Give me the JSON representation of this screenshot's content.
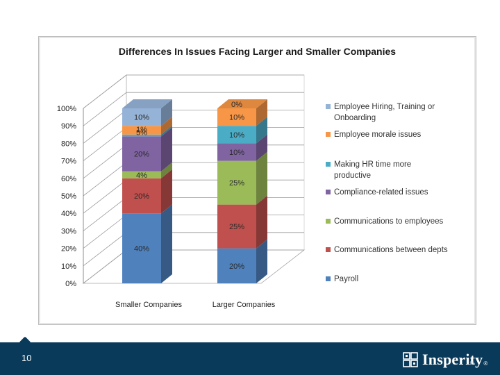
{
  "slide": {
    "number": "10",
    "tiny_page_number": "10"
  },
  "brand": {
    "name": "Insperity",
    "trademark": "®"
  },
  "colors": {
    "footer": "#0a3a5a",
    "payroll": "#4f81bd",
    "comm_depts": "#c0504d",
    "comm_employees": "#9bbb59",
    "compliance": "#8064a2",
    "hr_time": "#4bacc6",
    "morale": "#f79646",
    "hiring": "#95b3d7"
  },
  "chart_data": {
    "type": "bar",
    "stacked": true,
    "title": "Differences In Issues Facing Larger and Smaller Companies",
    "categories": [
      "Smaller Companies",
      "Larger Companies"
    ],
    "ylim": [
      0,
      100
    ],
    "yticks": [
      "0%",
      "10%",
      "20%",
      "30%",
      "40%",
      "50%",
      "60%",
      "70%",
      "80%",
      "90%",
      "100%"
    ],
    "series": [
      {
        "name": "Payroll",
        "key": "payroll",
        "values": [
          40,
          20
        ],
        "labels": [
          "40%",
          "20%"
        ]
      },
      {
        "name": "Communications between depts",
        "key": "comm_depts",
        "values": [
          20,
          25
        ],
        "labels": [
          "20%",
          "25%"
        ]
      },
      {
        "name": "Communications to employees",
        "key": "comm_employees",
        "values": [
          4,
          25
        ],
        "labels": [
          "4%",
          "25%"
        ]
      },
      {
        "name": "Compliance-related issues",
        "key": "compliance",
        "values": [
          20,
          10
        ],
        "labels": [
          "20%",
          "10%"
        ]
      },
      {
        "name": "Making HR time more productive",
        "key": "hr_time",
        "values": [
          1,
          10
        ],
        "labels": [
          "1%",
          "10%"
        ]
      },
      {
        "name": "Employee morale issues",
        "key": "morale",
        "values": [
          5,
          10
        ],
        "labels": [
          "5%",
          "10%"
        ]
      },
      {
        "name": "Employee Hiring, Training or Onboarding",
        "key": "hiring",
        "values": [
          10,
          0
        ],
        "labels": [
          "10%",
          "0%"
        ]
      }
    ],
    "legend": [
      {
        "key": "hiring",
        "lines": [
          "Employee Hiring, Training or",
          "Onboarding"
        ]
      },
      {
        "key": "morale",
        "lines": [
          "Employee morale issues"
        ]
      },
      {
        "key": "hr_time",
        "lines": [
          "Making HR time more",
          "productive"
        ]
      },
      {
        "key": "compliance",
        "lines": [
          "Compliance-related issues"
        ]
      },
      {
        "key": "comm_employees",
        "lines": [
          "Communications to employees"
        ]
      },
      {
        "key": "comm_depts",
        "lines": [
          "Communications between depts"
        ]
      },
      {
        "key": "payroll",
        "lines": [
          "Payroll"
        ]
      }
    ]
  }
}
